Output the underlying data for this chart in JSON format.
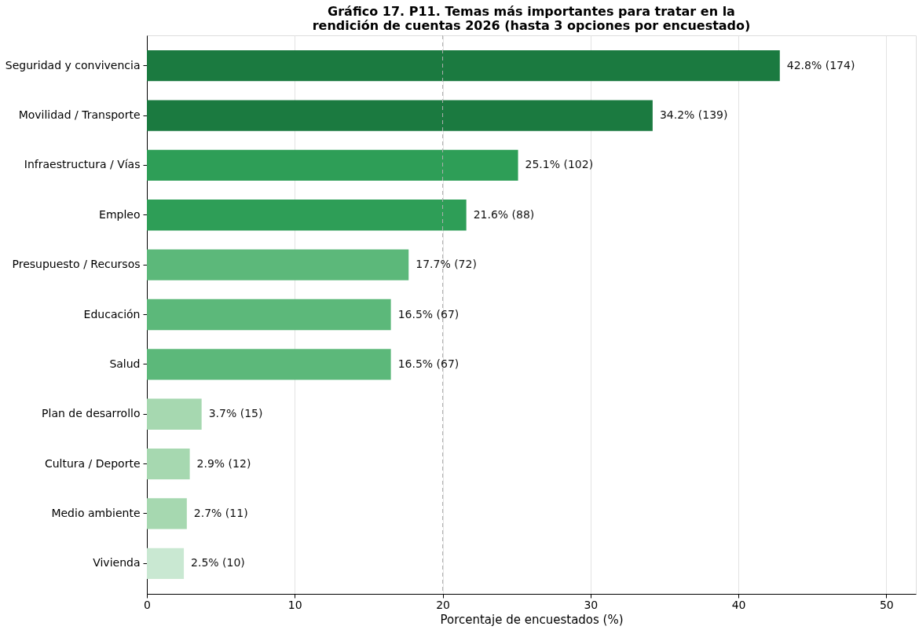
{
  "chart_data": {
    "type": "bar",
    "orientation": "horizontal",
    "title": "Gráfico 17. P11. Temas más importantes para tratar en la rendición de cuentas 2026 (hasta 3 opciones por encuestado)",
    "xlabel": "Porcentaje de encuestados (%)",
    "categories": [
      "Seguridad y convivencia",
      "Movilidad / Transporte",
      "Infraestructura / Vías",
      "Empleo",
      "Presupuesto / Recursos",
      "Educación",
      "Salud",
      "Plan de desarrollo",
      "Cultura / Deporte",
      "Medio ambiente",
      "Vivienda"
    ],
    "values": [
      42.8,
      34.2,
      25.1,
      21.6,
      17.7,
      16.5,
      16.5,
      3.7,
      2.9,
      2.7,
      2.5
    ],
    "colors": [
      "#1b7a40",
      "#1b7a40",
      "#2e9e57",
      "#2e9e57",
      "#5cb87a",
      "#5cb87a",
      "#5cb87a",
      "#a6d8b0",
      "#a6d8b0",
      "#a6d8b0",
      "#c9e8d2"
    ],
    "value_labels": [
      "42.8% (174)",
      "34.2% (139)",
      "25.1% (102)",
      "21.6% (88)",
      "17.7% (72)",
      "16.5% (67)",
      "16.5% (67)",
      "3.7% (15)",
      "2.9% (12)",
      "2.7% (11)",
      "2.5% (10)"
    ],
    "xlim": [
      0,
      52
    ],
    "xticks": [
      0,
      10,
      20,
      30,
      40,
      50
    ],
    "grid": "x",
    "ref_lines": [
      {
        "axis": "x",
        "value": 20,
        "color": "#b0b0b0",
        "line_style": "dashed"
      }
    ]
  }
}
